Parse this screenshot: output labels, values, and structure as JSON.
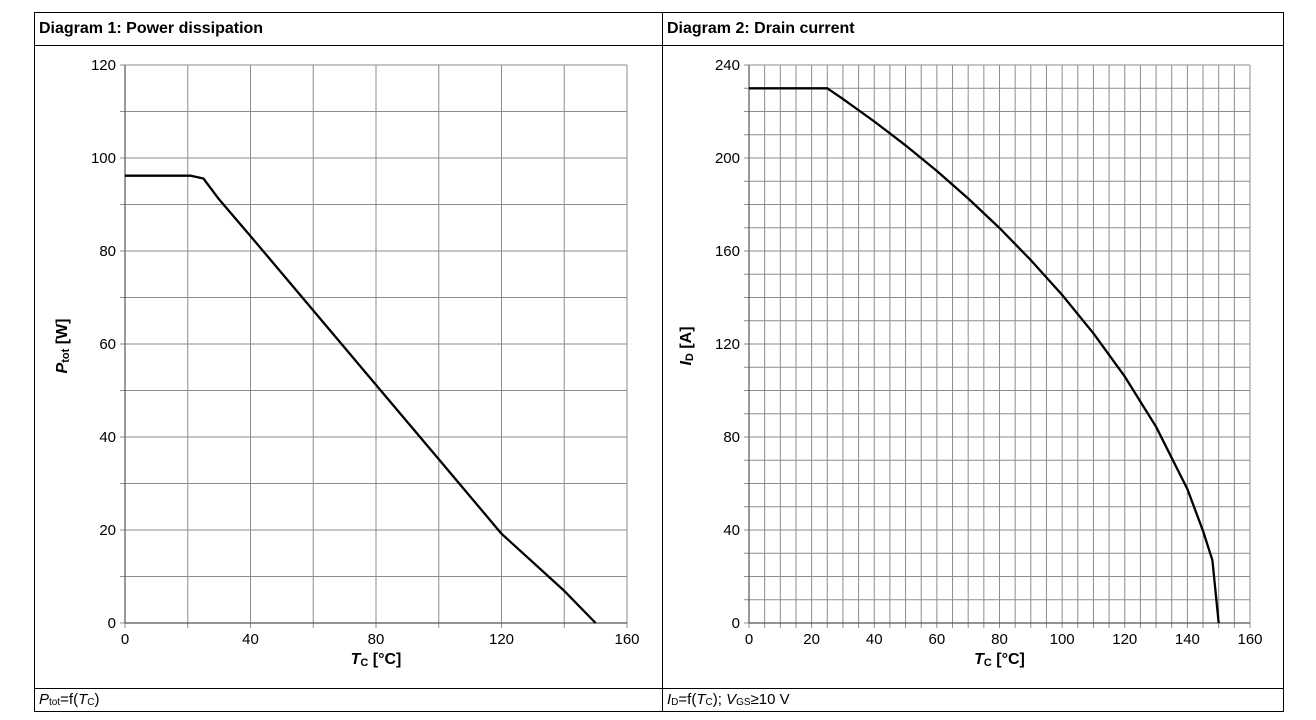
{
  "panels": [
    {
      "title": "Diagram 1: Power dissipation"
    },
    {
      "title": "Diagram 2: Drain current"
    }
  ],
  "captions": {
    "left": {
      "sym": "P",
      "sub": "tot",
      "eq": "=f(",
      "arg": "T",
      "argsub": "C",
      "close": ")"
    },
    "right": {
      "sym": "I",
      "sub": "D",
      "eq": "=f(",
      "arg": "T",
      "argsub": "C",
      "close": "); ",
      "sym2": "V",
      "sub2": "GS",
      "rest": "≥10 V"
    }
  },
  "chart_data": [
    {
      "type": "line",
      "title": "Diagram 1: Power dissipation",
      "xlabel": "Tc [°C]",
      "ylabel": "Ptot [W]",
      "xlabel_parts": {
        "main": "T",
        "sub": "C",
        "unit": " [°C]"
      },
      "ylabel_parts": {
        "main": "P",
        "sub": "tot",
        "unit": " [W]"
      },
      "xlim": [
        0,
        160
      ],
      "ylim": [
        0,
        120
      ],
      "xticks": [
        0,
        40,
        80,
        120,
        160
      ],
      "yticks": [
        0,
        20,
        40,
        60,
        80,
        100,
        120
      ],
      "x_grid_step": 20,
      "y_grid_step": 10,
      "grid": true,
      "series": [
        {
          "x": [
            0,
            21,
            25,
            30,
            40,
            60,
            80,
            100,
            120,
            140,
            150
          ],
          "y": [
            96.2,
            96.2,
            95.6,
            91.1,
            83.2,
            67.2,
            51.2,
            35.2,
            19.2,
            6.9,
            0
          ]
        }
      ]
    },
    {
      "type": "line",
      "title": "Diagram 2: Drain current",
      "xlabel": "Tc [°C]",
      "ylabel": "ID [A]",
      "xlabel_parts": {
        "main": "T",
        "sub": "C",
        "unit": " [°C]"
      },
      "ylabel_parts": {
        "main": "I",
        "sub": "D",
        "unit": " [A]"
      },
      "xlim": [
        0,
        160
      ],
      "ylim": [
        0,
        240
      ],
      "xticks": [
        0,
        20,
        40,
        60,
        80,
        100,
        120,
        140,
        160
      ],
      "yticks": [
        0,
        40,
        80,
        120,
        160,
        200,
        240
      ],
      "x_grid_step": 5,
      "y_grid_step": 10,
      "grid": true,
      "series": [
        {
          "x": [
            0,
            25,
            30,
            40,
            50,
            60,
            70,
            80,
            90,
            100,
            110,
            120,
            130,
            140,
            145,
            148,
            150
          ],
          "y": [
            230,
            230,
            225.4,
            215.7,
            205.4,
            194.4,
            182.6,
            169.9,
            156.1,
            141.1,
            124.6,
            106.0,
            84.4,
            57.6,
            39.6,
            27.0,
            0
          ]
        }
      ]
    }
  ]
}
